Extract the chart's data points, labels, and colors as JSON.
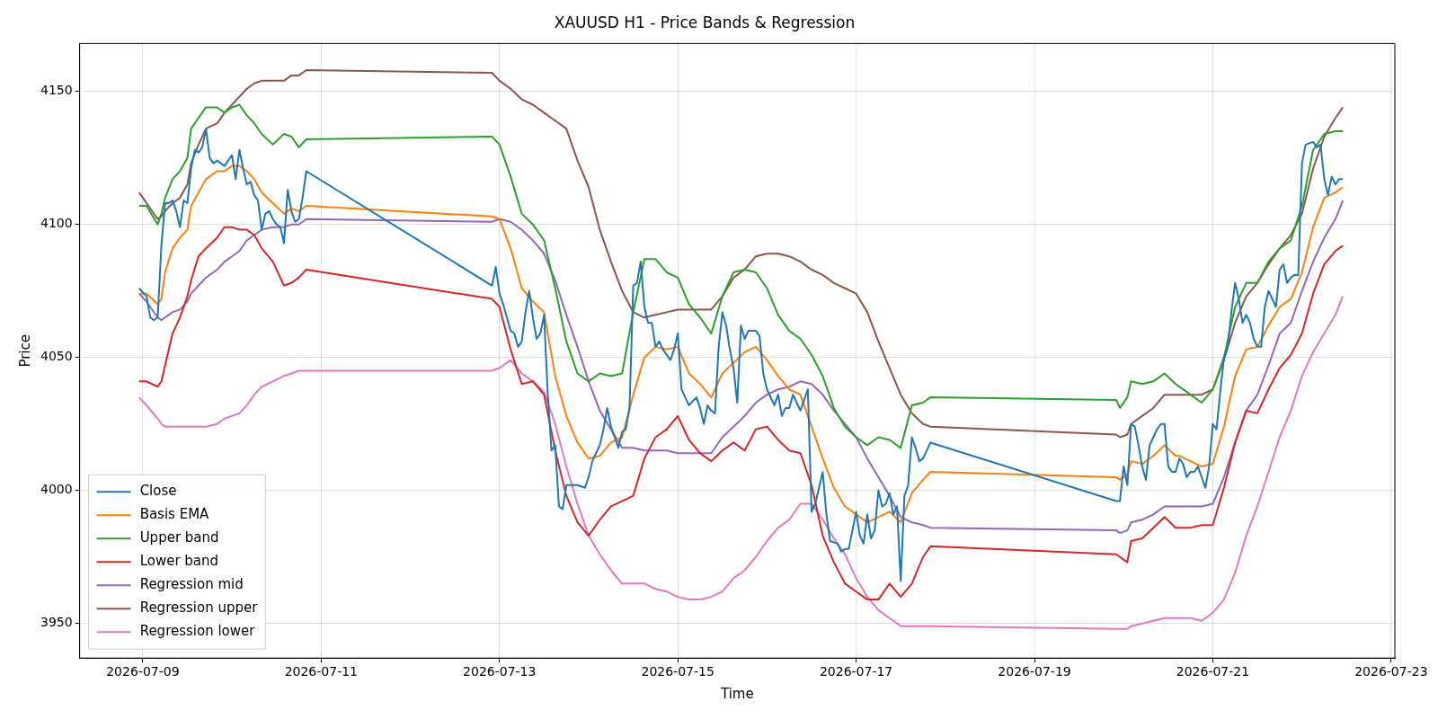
{
  "chart_data": {
    "type": "line",
    "title": "XAUUSD H1 - Price Bands & Regression",
    "xlabel": "Time",
    "ylabel": "Price",
    "xlim": [
      "2026-07-08T07:00",
      "2026-07-23T01:00"
    ],
    "xticks": [
      "2026-07-09",
      "2026-07-11",
      "2026-07-13",
      "2026-07-15",
      "2026-07-17",
      "2026-07-19",
      "2026-07-21",
      "2026-07-23"
    ],
    "ylim": [
      3937,
      4168
    ],
    "yticks": [
      3950,
      4000,
      4050,
      4100,
      4150
    ],
    "grid": true,
    "legend": "bottom left",
    "x": [
      "2026-07-08T23:00",
      "2026-07-09T01:00",
      "2026-07-09T04:00",
      "2026-07-09T05:00",
      "2026-07-09T06:00",
      "2026-07-09T08:00",
      "2026-07-09T10:00",
      "2026-07-09T12:00",
      "2026-07-09T13:00",
      "2026-07-09T15:00",
      "2026-07-09T17:00",
      "2026-07-09T20:00",
      "2026-07-09T22:00",
      "2026-07-10T00:00",
      "2026-07-10T02:00",
      "2026-07-10T04:00",
      "2026-07-10T06:00",
      "2026-07-10T08:00",
      "2026-07-10T11:00",
      "2026-07-10T14:00",
      "2026-07-10T16:00",
      "2026-07-10T18:00",
      "2026-07-10T20:00",
      "2026-07-12T22:00",
      "2026-07-13T00:00",
      "2026-07-13T03:00",
      "2026-07-13T06:00",
      "2026-07-13T09:00",
      "2026-07-13T12:00",
      "2026-07-13T15:00",
      "2026-07-13T18:00",
      "2026-07-13T21:00",
      "2026-07-14T00:00",
      "2026-07-14T03:00",
      "2026-07-14T06:00",
      "2026-07-14T09:00",
      "2026-07-14T12:00",
      "2026-07-14T15:00",
      "2026-07-14T18:00",
      "2026-07-14T21:00",
      "2026-07-15T00:00",
      "2026-07-15T03:00",
      "2026-07-15T06:00",
      "2026-07-15T09:00",
      "2026-07-15T12:00",
      "2026-07-15T15:00",
      "2026-07-15T18:00",
      "2026-07-15T21:00",
      "2026-07-16T00:00",
      "2026-07-16T03:00",
      "2026-07-16T06:00",
      "2026-07-16T09:00",
      "2026-07-16T12:00",
      "2026-07-16T15:00",
      "2026-07-16T18:00",
      "2026-07-16T21:00",
      "2026-07-17T00:00",
      "2026-07-17T03:00",
      "2026-07-17T06:00",
      "2026-07-17T09:00",
      "2026-07-17T12:00",
      "2026-07-17T15:00",
      "2026-07-17T18:00",
      "2026-07-17T20:00",
      "2026-07-19T22:00",
      "2026-07-19T23:00",
      "2026-07-20T01:00",
      "2026-07-20T02:00",
      "2026-07-20T05:00",
      "2026-07-20T08:00",
      "2026-07-20T11:00",
      "2026-07-20T14:00",
      "2026-07-20T15:00",
      "2026-07-20T18:00",
      "2026-07-20T21:00",
      "2026-07-21T00:00",
      "2026-07-21T03:00",
      "2026-07-21T06:00",
      "2026-07-21T09:00",
      "2026-07-21T12:00",
      "2026-07-21T15:00",
      "2026-07-21T18:00",
      "2026-07-21T21:00",
      "2026-07-22T00:00",
      "2026-07-22T03:00",
      "2026-07-22T06:00",
      "2026-07-22T09:00",
      "2026-07-22T11:00"
    ],
    "series": [
      {
        "name": "Close",
        "color": "#1f77b4",
        "x": [
          "2026-07-08T23:00",
          "2026-07-09T01:00",
          "2026-07-09T02:00",
          "2026-07-09T03:00",
          "2026-07-09T04:00",
          "2026-07-09T05:00",
          "2026-07-09T06:00",
          "2026-07-09T07:00",
          "2026-07-09T08:00",
          "2026-07-09T09:00",
          "2026-07-09T10:00",
          "2026-07-09T11:00",
          "2026-07-09T12:00",
          "2026-07-09T13:00",
          "2026-07-09T14:00",
          "2026-07-09T15:00",
          "2026-07-09T16:00",
          "2026-07-09T17:00",
          "2026-07-09T18:00",
          "2026-07-09T19:00",
          "2026-07-09T20:00",
          "2026-07-09T22:00",
          "2026-07-10T00:00",
          "2026-07-10T01:00",
          "2026-07-10T02:00",
          "2026-07-10T03:00",
          "2026-07-10T04:00",
          "2026-07-10T05:00",
          "2026-07-10T06:00",
          "2026-07-10T07:00",
          "2026-07-10T08:00",
          "2026-07-10T09:00",
          "2026-07-10T10:00",
          "2026-07-10T11:00",
          "2026-07-10T12:00",
          "2026-07-10T13:00",
          "2026-07-10T14:00",
          "2026-07-10T15:00",
          "2026-07-10T16:00",
          "2026-07-10T17:00",
          "2026-07-10T18:00",
          "2026-07-10T19:00",
          "2026-07-10T20:00",
          "2026-07-12T22:00",
          "2026-07-12T23:00",
          "2026-07-13T00:00",
          "2026-07-13T01:00",
          "2026-07-13T03:00",
          "2026-07-13T04:00",
          "2026-07-13T05:00",
          "2026-07-13T06:00",
          "2026-07-13T07:00",
          "2026-07-13T08:00",
          "2026-07-13T09:00",
          "2026-07-13T10:00",
          "2026-07-13T11:00",
          "2026-07-13T12:00",
          "2026-07-13T13:00",
          "2026-07-13T14:00",
          "2026-07-13T15:00",
          "2026-07-13T16:00",
          "2026-07-13T17:00",
          "2026-07-13T18:00",
          "2026-07-13T19:00",
          "2026-07-13T21:00",
          "2026-07-13T23:00",
          "2026-07-14T00:00",
          "2026-07-14T01:00",
          "2026-07-14T03:00",
          "2026-07-14T04:00",
          "2026-07-14T05:00",
          "2026-07-14T06:00",
          "2026-07-14T07:00",
          "2026-07-14T08:00",
          "2026-07-14T09:00",
          "2026-07-14T10:00",
          "2026-07-14T11:00",
          "2026-07-14T12:00",
          "2026-07-14T13:00",
          "2026-07-14T14:00",
          "2026-07-14T15:00",
          "2026-07-14T16:00",
          "2026-07-14T17:00",
          "2026-07-14T18:00",
          "2026-07-14T19:00",
          "2026-07-14T20:00",
          "2026-07-14T22:00",
          "2026-07-14T23:00",
          "2026-07-15T00:00",
          "2026-07-15T01:00",
          "2026-07-15T02:00",
          "2026-07-15T03:00",
          "2026-07-15T05:00",
          "2026-07-15T06:00",
          "2026-07-15T07:00",
          "2026-07-15T08:00",
          "2026-07-15T09:00",
          "2026-07-15T10:00",
          "2026-07-15T11:00",
          "2026-07-15T12:00",
          "2026-07-15T13:00",
          "2026-07-15T14:00",
          "2026-07-15T15:00",
          "2026-07-15T16:00",
          "2026-07-15T17:00",
          "2026-07-15T18:00",
          "2026-07-15T19:00",
          "2026-07-15T21:00",
          "2026-07-15T22:00",
          "2026-07-15T23:00",
          "2026-07-16T00:00",
          "2026-07-16T02:00",
          "2026-07-16T03:00",
          "2026-07-16T04:00",
          "2026-07-16T05:00",
          "2026-07-16T06:00",
          "2026-07-16T07:00",
          "2026-07-16T08:00",
          "2026-07-16T09:00",
          "2026-07-16T11:00",
          "2026-07-16T12:00",
          "2026-07-16T13:00",
          "2026-07-16T15:00",
          "2026-07-16T16:00",
          "2026-07-16T17:00",
          "2026-07-16T19:00",
          "2026-07-16T20:00",
          "2026-07-16T21:00",
          "2026-07-16T22:00",
          "2026-07-17T00:00",
          "2026-07-17T01:00",
          "2026-07-17T02:00",
          "2026-07-17T03:00",
          "2026-07-17T04:00",
          "2026-07-17T05:00",
          "2026-07-17T06:00",
          "2026-07-17T07:00",
          "2026-07-17T08:00",
          "2026-07-17T09:00",
          "2026-07-17T10:00",
          "2026-07-17T11:00",
          "2026-07-17T12:00",
          "2026-07-17T13:00",
          "2026-07-17T14:00",
          "2026-07-17T15:00",
          "2026-07-17T16:00",
          "2026-07-17T17:00",
          "2026-07-17T18:00",
          "2026-07-17T20:00",
          "2026-07-19T22:00",
          "2026-07-19T23:00",
          "2026-07-20T00:00",
          "2026-07-20T01:00",
          "2026-07-20T02:00",
          "2026-07-20T03:00",
          "2026-07-20T04:00",
          "2026-07-20T05:00",
          "2026-07-20T06:00",
          "2026-07-20T07:00",
          "2026-07-20T08:00",
          "2026-07-20T09:00",
          "2026-07-20T10:00",
          "2026-07-20T11:00",
          "2026-07-20T12:00",
          "2026-07-20T13:00",
          "2026-07-20T14:00",
          "2026-07-20T15:00",
          "2026-07-20T16:00",
          "2026-07-20T17:00",
          "2026-07-20T18:00",
          "2026-07-20T19:00",
          "2026-07-20T20:00",
          "2026-07-20T21:00",
          "2026-07-20T22:00",
          "2026-07-20T23:00",
          "2026-07-21T00:00",
          "2026-07-21T01:00",
          "2026-07-21T02:00",
          "2026-07-21T03:00",
          "2026-07-21T04:00",
          "2026-07-21T05:00",
          "2026-07-21T06:00",
          "2026-07-21T07:00",
          "2026-07-21T08:00",
          "2026-07-21T09:00",
          "2026-07-21T10:00",
          "2026-07-21T11:00",
          "2026-07-21T12:00",
          "2026-07-21T13:00",
          "2026-07-21T14:00",
          "2026-07-21T15:00",
          "2026-07-21T16:00",
          "2026-07-21T17:00",
          "2026-07-21T18:00",
          "2026-07-21T19:00",
          "2026-07-21T20:00",
          "2026-07-21T21:00",
          "2026-07-21T22:00",
          "2026-07-21T23:00",
          "2026-07-22T00:00",
          "2026-07-22T01:00",
          "2026-07-22T03:00",
          "2026-07-22T04:00",
          "2026-07-22T05:00",
          "2026-07-22T06:00",
          "2026-07-22T07:00",
          "2026-07-22T08:00",
          "2026-07-22T09:00",
          "2026-07-22T10:00",
          "2026-07-22T11:00"
        ],
        "values": [
          4076,
          4073,
          4065,
          4064,
          4065,
          4092,
          4108,
          4108,
          4109,
          4105,
          4099,
          4109,
          4108,
          4121,
          4128,
          4127,
          4129,
          4136,
          4125,
          4123,
          4124,
          4122,
          4126,
          4117,
          4128,
          4121,
          4115,
          4116,
          4111,
          4109,
          4098,
          4104,
          4105,
          4102,
          4100,
          4099,
          4093,
          4113,
          4105,
          4101,
          4102,
          4110,
          4120,
          4077,
          4084,
          4074,
          4070,
          4060,
          4059,
          4054,
          4056,
          4067,
          4075,
          4065,
          4057,
          4059,
          4066,
          4036,
          4015,
          4017,
          3994,
          3993,
          4002,
          4002,
          4002,
          4001,
          4005,
          4011,
          4017,
          4023,
          4031,
          4024,
          4020,
          4016,
          4022,
          4023,
          4031,
          4077,
          4078,
          4086,
          4069,
          4063,
          4063,
          4054,
          4056,
          4053,
          4049,
          4053,
          4059,
          4038,
          4035,
          4032,
          4035,
          4031,
          4025,
          4032,
          4030,
          4029,
          4054,
          4067,
          4062,
          4053,
          4046,
          4033,
          4062,
          4057,
          4060,
          4060,
          4058,
          4044,
          4038,
          4032,
          4036,
          4028,
          4031,
          4031,
          4036,
          4033,
          4030,
          4038,
          3992,
          3995,
          4007,
          3991,
          3981,
          3980,
          3977,
          3978,
          3978,
          3992,
          3983,
          3980,
          3991,
          3982,
          3985,
          4000,
          3994,
          3995,
          3999,
          3991,
          3994,
          3966,
          3998,
          4002,
          4020,
          4016,
          4011,
          4012,
          4018,
          3996,
          3996,
          4009,
          4002,
          4025,
          4024,
          4017,
          4009,
          4004,
          4017,
          4020,
          4023,
          4025,
          4025,
          4009,
          4007,
          4007,
          4012,
          4010,
          4005,
          4007,
          4007,
          4009,
          4005,
          4001,
          4009,
          4025,
          4023,
          4037,
          4050,
          4054,
          4067,
          4078,
          4072,
          4063,
          4066,
          4063,
          4057,
          4054,
          4054,
          4069,
          4075,
          4072,
          4069,
          4083,
          4085,
          4078,
          4080,
          4081,
          4081,
          4123,
          4130,
          4131,
          4129,
          4130,
          4117,
          4111,
          4118,
          4115,
          4117,
          4117
        ]
      },
      {
        "name": "Basis EMA",
        "color": "#ff7f0e",
        "values": [
          4074,
          4074,
          4070,
          4072,
          4082,
          4091,
          4095,
          4098,
          4107,
          4112,
          4117,
          4120,
          4120,
          4122,
          4122,
          4120,
          4117,
          4112,
          4108,
          4104,
          4106,
          4105,
          4107,
          4103,
          4102,
          4091,
          4076,
          4071,
          4067,
          4043,
          4028,
          4018,
          4012,
          4013,
          4018,
          4020,
          4036,
          4050,
          4054,
          4053,
          4054,
          4044,
          4040,
          4035,
          4044,
          4048,
          4052,
          4054,
          4049,
          4043,
          4038,
          4036,
          4024,
          4012,
          4001,
          3994,
          3991,
          3988,
          3990,
          3992,
          3988,
          3999,
          4004,
          4007,
          4005,
          4004,
          4006,
          4011,
          4010,
          4013,
          4017,
          4013,
          4013,
          4011,
          4009,
          4010,
          4024,
          4043,
          4053,
          4054,
          4062,
          4069,
          4072,
          4082,
          4099,
          4110,
          4112,
          4114
        ]
      },
      {
        "name": "Upper band",
        "color": "#2ca02c",
        "values": [
          4107,
          4107,
          4100,
          4104,
          4110,
          4117,
          4120,
          4125,
          4136,
          4140,
          4144,
          4144,
          4142,
          4144,
          4145,
          4141,
          4138,
          4134,
          4130,
          4134,
          4133,
          4129,
          4132,
          4133,
          4130,
          4118,
          4104,
          4100,
          4094,
          4076,
          4056,
          4044,
          4041,
          4044,
          4043,
          4044,
          4067,
          4087,
          4087,
          4082,
          4080,
          4070,
          4065,
          4059,
          4073,
          4082,
          4083,
          4082,
          4076,
          4066,
          4060,
          4057,
          4051,
          4043,
          4031,
          4024,
          4020,
          4017,
          4020,
          4019,
          4016,
          4032,
          4033,
          4035,
          4034,
          4031,
          4035,
          4041,
          4040,
          4041,
          4044,
          4040,
          4039,
          4036,
          4033,
          4038,
          4050,
          4069,
          4078,
          4078,
          4086,
          4091,
          4094,
          4107,
          4128,
          4134,
          4135,
          4135
        ]
      },
      {
        "name": "Lower band",
        "color": "#d62728",
        "values": [
          4041,
          4041,
          4039,
          4041,
          4047,
          4059,
          4065,
          4073,
          4079,
          4088,
          4091,
          4095,
          4099,
          4099,
          4098,
          4098,
          4096,
          4091,
          4086,
          4077,
          4078,
          4080,
          4083,
          4072,
          4069,
          4053,
          4040,
          4041,
          4036,
          4015,
          3998,
          3988,
          3983,
          3989,
          3994,
          3996,
          3998,
          4012,
          4020,
          4023,
          4028,
          4019,
          4014,
          4011,
          4015,
          4018,
          4015,
          4023,
          4024,
          4019,
          4015,
          4014,
          4002,
          3983,
          3973,
          3965,
          3962,
          3959,
          3959,
          3965,
          3960,
          3965,
          3975,
          3979,
          3976,
          3975,
          3973,
          3981,
          3982,
          3986,
          3990,
          3986,
          3986,
          3986,
          3987,
          3987,
          4001,
          4018,
          4030,
          4029,
          4038,
          4046,
          4051,
          4059,
          4074,
          4085,
          4090,
          4092
        ]
      },
      {
        "name": "Regression mid",
        "color": "#9467bd",
        "values": [
          4074,
          4071,
          4065,
          4064,
          4065,
          4067,
          4068,
          4071,
          4074,
          4077,
          4080,
          4083,
          4086,
          4088,
          4090,
          4094,
          4096,
          4098,
          4099,
          4099,
          4100,
          4100,
          4102,
          4101,
          4102,
          4101,
          4098,
          4094,
          4089,
          4079,
          4066,
          4054,
          4041,
          4030,
          4023,
          4016,
          4016,
          4015,
          4015,
          4015,
          4014,
          4014,
          4014,
          4014,
          4020,
          4024,
          4028,
          4033,
          4036,
          4038,
          4039,
          4041,
          4040,
          4036,
          4030,
          4025,
          4020,
          4012,
          4005,
          3998,
          3990,
          3988,
          3987,
          3986,
          3985,
          3984,
          3985,
          3988,
          3989,
          3991,
          3994,
          3994,
          3994,
          3994,
          3994,
          3995,
          4005,
          4018,
          4030,
          4036,
          4047,
          4059,
          4063,
          4075,
          4086,
          4095,
          4102,
          4109
        ]
      },
      {
        "name": "Regression upper",
        "color": "#8c564b",
        "values": [
          4112,
          4108,
          4102,
          4103,
          4105,
          4108,
          4110,
          4115,
          4123,
          4130,
          4136,
          4138,
          4142,
          4145,
          4148,
          4151,
          4153,
          4154,
          4154,
          4154,
          4156,
          4156,
          4158,
          4157,
          4154,
          4151,
          4147,
          4145,
          4142,
          4139,
          4136,
          4124,
          4114,
          4098,
          4086,
          4075,
          4067,
          4065,
          4066,
          4067,
          4068,
          4068,
          4068,
          4068,
          4073,
          4080,
          4083,
          4088,
          4089,
          4089,
          4088,
          4086,
          4083,
          4081,
          4078,
          4076,
          4074,
          4067,
          4056,
          4046,
          4036,
          4029,
          4025,
          4024,
          4021,
          4020,
          4021,
          4025,
          4028,
          4031,
          4036,
          4036,
          4036,
          4036,
          4036,
          4038,
          4049,
          4063,
          4073,
          4078,
          4085,
          4091,
          4096,
          4104,
          4121,
          4133,
          4140,
          4144
        ]
      },
      {
        "name": "Regression lower",
        "color": "#e377c2",
        "values": [
          4035,
          4032,
          4027,
          4025,
          4024,
          4024,
          4024,
          4024,
          4024,
          4024,
          4024,
          4025,
          4027,
          4028,
          4029,
          4032,
          4036,
          4039,
          4041,
          4043,
          4044,
          4045,
          4045,
          4045,
          4046,
          4049,
          4044,
          4041,
          4037,
          4025,
          4009,
          3995,
          3983,
          3976,
          3970,
          3965,
          3965,
          3965,
          3963,
          3962,
          3960,
          3959,
          3959,
          3960,
          3962,
          3967,
          3970,
          3975,
          3981,
          3986,
          3989,
          3995,
          3995,
          3989,
          3982,
          3976,
          3967,
          3960,
          3955,
          3952,
          3949,
          3949,
          3949,
          3949,
          3948,
          3948,
          3948,
          3949,
          3950,
          3951,
          3952,
          3952,
          3952,
          3952,
          3951,
          3954,
          3959,
          3969,
          3983,
          3994,
          4007,
          4020,
          4030,
          4043,
          4052,
          4059,
          4066,
          4073
        ]
      }
    ]
  }
}
